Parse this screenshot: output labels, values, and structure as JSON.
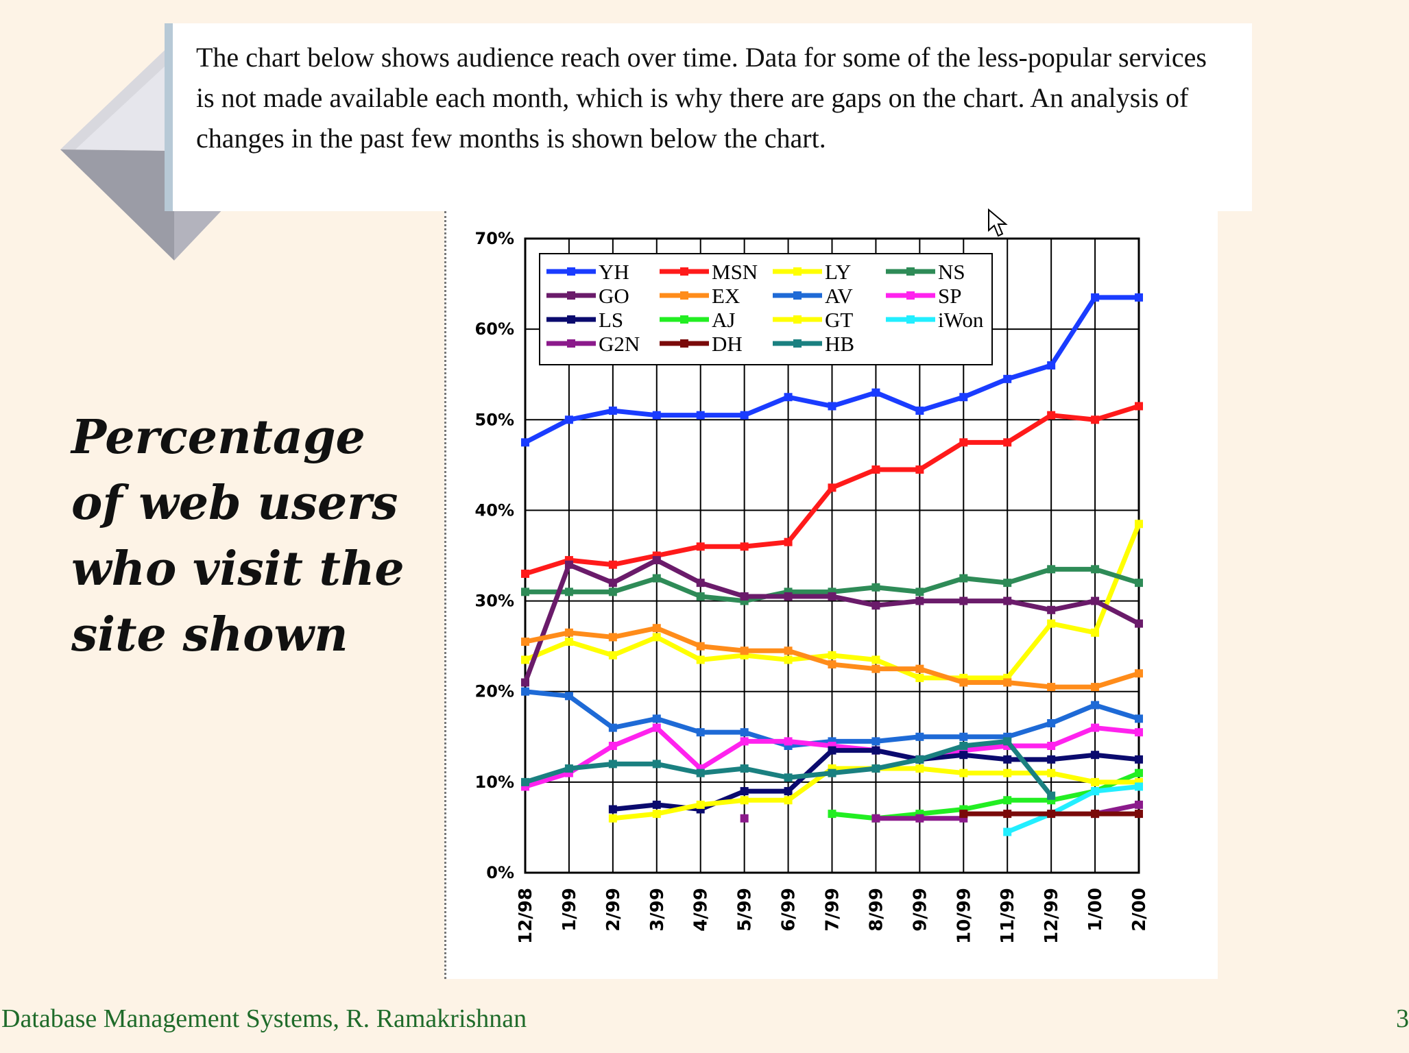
{
  "callout": {
    "text": "The chart below shows audience reach over time. Data for some of the less-popular services is not made available each month, which is why there are gaps on the chart. An analysis of changes in the past few months is shown below the chart."
  },
  "slide": {
    "title": "Percentage of web users who visit the site shown",
    "footer": "Database Management Systems, R. Ramakrishnan",
    "page_number": "3"
  },
  "chart_data": {
    "type": "line",
    "title": "",
    "xlabel": "",
    "ylabel": "",
    "ylim": [
      0,
      70
    ],
    "y_ticks": [
      "0%",
      "10%",
      "20%",
      "30%",
      "40%",
      "50%",
      "60%",
      "70%"
    ],
    "grid": true,
    "legend_position": "top-left",
    "categories": [
      "12/98",
      "1/99",
      "2/99",
      "3/99",
      "4/99",
      "5/99",
      "6/99",
      "7/99",
      "8/99",
      "9/99",
      "10/99",
      "11/99",
      "12/99",
      "1/00",
      "2/00"
    ],
    "series": [
      {
        "name": "YH",
        "color": "#1a3cff",
        "values": [
          47.5,
          50,
          51,
          50.5,
          50.5,
          50.5,
          52.5,
          51.5,
          53,
          51,
          52.5,
          54.5,
          56,
          63.5,
          63.5
        ]
      },
      {
        "name": "MSN",
        "color": "#ff1a1a",
        "values": [
          33,
          34.5,
          34,
          35,
          36,
          36,
          36.5,
          42.5,
          44.5,
          44.5,
          47.5,
          47.5,
          50.5,
          50,
          51.5
        ]
      },
      {
        "name": "LY",
        "color": "#ffff00",
        "values": [
          23.5,
          25.5,
          24,
          26,
          23.5,
          24,
          23.5,
          24,
          23.5,
          21.5,
          21.5,
          21.5,
          27.5,
          26.5,
          38.5
        ]
      },
      {
        "name": "NS",
        "color": "#2e8b57",
        "values": [
          31,
          31,
          31,
          32.5,
          30.5,
          30,
          31,
          31,
          31.5,
          31,
          32.5,
          32,
          33.5,
          33.5,
          32
        ]
      },
      {
        "name": "GO",
        "color": "#6a1b6a",
        "values": [
          21,
          34,
          32,
          34.5,
          32,
          30.5,
          30.5,
          30.5,
          29.5,
          30,
          30,
          30,
          29,
          30,
          27.5
        ]
      },
      {
        "name": "EX",
        "color": "#ff8c1a",
        "values": [
          25.5,
          26.5,
          26,
          27,
          25,
          24.5,
          24.5,
          23,
          22.5,
          22.5,
          21,
          21,
          20.5,
          20.5,
          22
        ]
      },
      {
        "name": "AV",
        "color": "#1e6ad6",
        "values": [
          20,
          19.5,
          16,
          17,
          15.5,
          15.5,
          14,
          14.5,
          14.5,
          15,
          15,
          15,
          16.5,
          18.5,
          17
        ]
      },
      {
        "name": "SP",
        "color": "#ff22ee",
        "values": [
          9.5,
          11,
          14,
          16,
          11.5,
          14.5,
          14.5,
          14,
          13.5,
          12.5,
          13.5,
          14,
          14,
          16,
          15.5
        ]
      },
      {
        "name": "LS",
        "color": "#0a0a6e",
        "values": [
          null,
          null,
          7,
          7.5,
          7,
          9,
          9,
          13.5,
          13.5,
          12.5,
          13,
          12.5,
          12.5,
          13,
          12.5
        ]
      },
      {
        "name": "AJ",
        "color": "#22ee22",
        "values": [
          null,
          null,
          null,
          null,
          null,
          null,
          null,
          6.5,
          6,
          6.5,
          7,
          8,
          8,
          9,
          11
        ]
      },
      {
        "name": "GT",
        "color": "#ffff00",
        "values": [
          null,
          null,
          6,
          6.5,
          7.5,
          8,
          8,
          11.5,
          11.5,
          11.5,
          11,
          11,
          11,
          10,
          10
        ]
      },
      {
        "name": "iWon",
        "color": "#22eeff",
        "values": [
          null,
          null,
          null,
          null,
          null,
          null,
          null,
          null,
          null,
          null,
          null,
          4.5,
          6.5,
          9,
          9.5
        ]
      },
      {
        "name": "G2N",
        "color": "#8b1a8b",
        "values": [
          null,
          null,
          null,
          null,
          null,
          6,
          null,
          null,
          6,
          6,
          6,
          null,
          null,
          6.5,
          7.5
        ]
      },
      {
        "name": "DH",
        "color": "#7a0a0a",
        "values": [
          null,
          null,
          null,
          null,
          null,
          null,
          null,
          null,
          null,
          null,
          6.5,
          6.5,
          6.5,
          6.5,
          6.5
        ]
      },
      {
        "name": "HB",
        "color": "#1a8080",
        "values": [
          10,
          11.5,
          12,
          12,
          11,
          11.5,
          10.5,
          11,
          11.5,
          12.5,
          14,
          14.5,
          8.5,
          null,
          null
        ]
      }
    ]
  }
}
